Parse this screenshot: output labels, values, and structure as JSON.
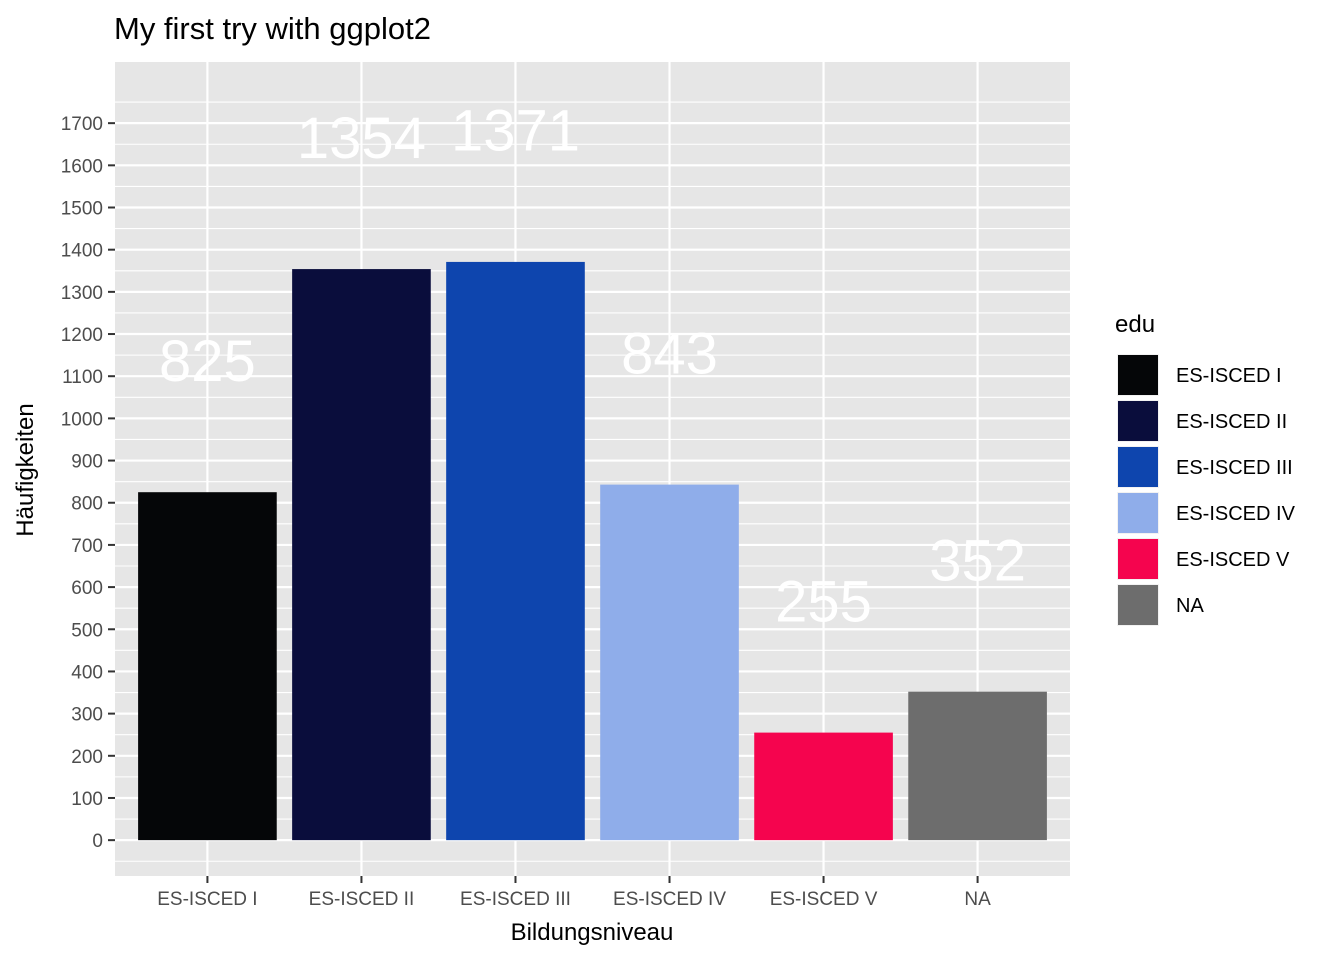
{
  "chart_data": {
    "type": "bar",
    "title": "My first try with ggplot2",
    "xlabel": "Bildungsniveau",
    "ylabel": "Häufigkeiten",
    "categories": [
      "ES-ISCED I",
      "ES-ISCED II",
      "ES-ISCED III",
      "ES-ISCED IV",
      "ES-ISCED V",
      "NA"
    ],
    "values": [
      825,
      1354,
      1371,
      843,
      255,
      352
    ],
    "data_labels": [
      "825",
      "1354",
      "1371",
      "843",
      "255",
      "352"
    ],
    "data_label_y": [
      1125,
      1654,
      1671,
      1143,
      555,
      652
    ],
    "colors": [
      "#050608",
      "#0a0d3c",
      "#0e45ae",
      "#8fadea",
      "#f5044e",
      "#6d6d6d"
    ],
    "ylim": [
      -85,
      1845
    ],
    "yticks": [
      0,
      100,
      200,
      300,
      400,
      500,
      600,
      700,
      800,
      900,
      1000,
      1100,
      1200,
      1300,
      1400,
      1500,
      1600,
      1700
    ],
    "grid": true,
    "legend": {
      "title": "edu",
      "position": "right",
      "entries": [
        "ES-ISCED I",
        "ES-ISCED II",
        "ES-ISCED III",
        "ES-ISCED IV",
        "ES-ISCED V",
        "NA"
      ]
    },
    "panel_background": "#e6e6e6",
    "grid_color": "#ffffff"
  }
}
